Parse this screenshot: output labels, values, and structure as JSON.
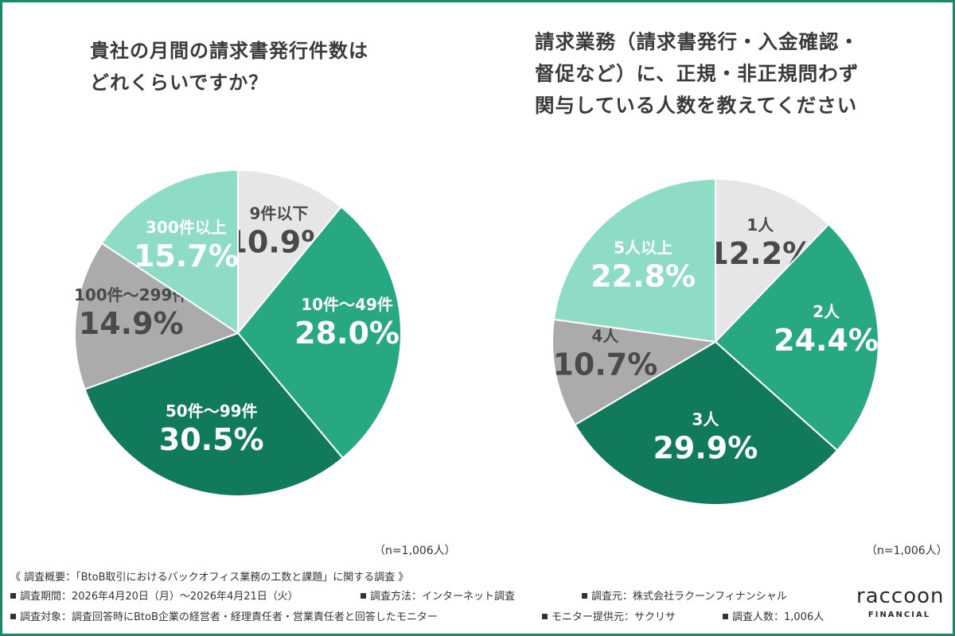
{
  "chart_data": [
    {
      "type": "pie",
      "title_lines": [
        "貴社の月間の請求書発行件数は",
        "どれくらいですか？"
      ],
      "n_label": "（n=1,006人）",
      "slices": [
        {
          "label": "9件以下",
          "value": 10.9,
          "display": "10.9%",
          "color": "#e6e6e6",
          "text_color": "#4a4a4a"
        },
        {
          "label": "10件～49件",
          "value": 28.0,
          "display": "28.0%",
          "color": "#27a883",
          "text_color": "#ffffff"
        },
        {
          "label": "50件～99件",
          "value": 30.5,
          "display": "30.5%",
          "color": "#117a5c",
          "text_color": "#ffffff"
        },
        {
          "label": "100件～299件",
          "value": 14.9,
          "display": "14.9%",
          "color": "#ababab",
          "text_color": "#4a4a4a"
        },
        {
          "label": "300件以上",
          "value": 15.7,
          "display": "15.7%",
          "color": "#8fdcc6",
          "text_color": "#ffffff"
        }
      ]
    },
    {
      "type": "pie",
      "title_lines": [
        "請求業務（請求書発行・入金確認・",
        "督促など）に、正規・非正規問わず",
        "関与している人数を教えてください"
      ],
      "n_label": "（n=1,006人）",
      "slices": [
        {
          "label": "1人",
          "value": 12.2,
          "display": "12.2%",
          "color": "#e6e6e6",
          "text_color": "#4a4a4a"
        },
        {
          "label": "2人",
          "value": 24.4,
          "display": "24.4%",
          "color": "#27a883",
          "text_color": "#ffffff"
        },
        {
          "label": "3人",
          "value": 29.9,
          "display": "29.9%",
          "color": "#117a5c",
          "text_color": "#ffffff"
        },
        {
          "label": "4人",
          "value": 10.7,
          "display": "10.7%",
          "color": "#ababab",
          "text_color": "#4a4a4a"
        },
        {
          "label": "5人以上",
          "value": 22.8,
          "display": "22.8%",
          "color": "#8fdcc6",
          "text_color": "#ffffff"
        }
      ]
    }
  ],
  "footer": {
    "overview": "《 調査概要：「BtoB取引におけるバックオフィス業務の工数と課題」に関する調査 》",
    "period": "調査期間：2026年4月20日（月）～2026年4月21日（火）",
    "method": "調査方法：インターネット調査",
    "source": "調査元：株式会社ラクーンフィナンシャル",
    "target": "調査対象：調査回答時にBtoB企業の経営者・経理責任者・営業責任者と回答したモニター",
    "provider": "モニター提供元：サクリサ",
    "count": "調査人数：1,006人"
  },
  "logo": {
    "word": "raccoon",
    "sub": "FINANCIAL"
  }
}
